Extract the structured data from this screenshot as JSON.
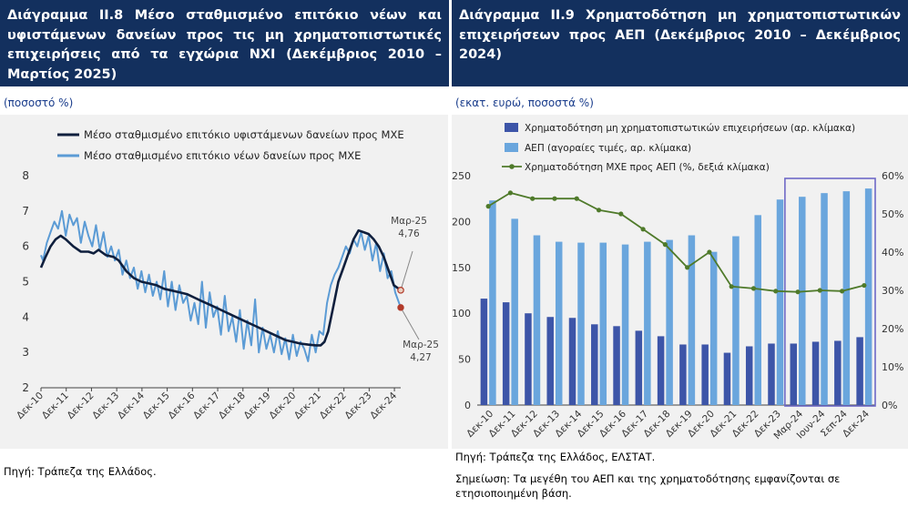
{
  "left": {
    "title": "Διάγραμμα ΙΙ.8 Μέσο σταθμισμένο επιτόκιο νέων και υφιστάμενων δανείων προς τις μη χρηματοπιστωτικές επιχειρήσεις από τα εγχώρια ΝΧΙ (Δεκέμβριος 2010 – Μαρτίος 2025)",
    "units": "(ποσοστό %)",
    "source": "Πηγή: Τράπεζα της Ελλάδος."
  },
  "right": {
    "title": "Διάγραμμα ΙΙ.9 Χρηματοδότηση μη χρηματοπιστωτικών επιχειρήσεων προς ΑΕΠ (Δεκέμβριος 2010 – Δεκέμβριος 2024)",
    "units": "(εκατ. ευρώ, ποσοστά %)",
    "source": "Πηγή: Τράπεζα της Ελλάδος, ΕΛΣΤΑΤ.",
    "note": "Σημείωση: Τα μεγέθη του ΑΕΠ και της χρηματοδότησης εμφανίζονται σε ετησιοποιημένη βάση."
  },
  "colors": {
    "title_bg": "#13305e",
    "dark_line": "#0f1f3d",
    "light_line": "#5b9bd5",
    "dark_bar": "#3d55a8",
    "light_bar": "#6aa6dd",
    "ratio_line": "#4f7a2a",
    "box": "#6f69c7"
  },
  "chart_data": [
    {
      "type": "line",
      "ylim": [
        2,
        8
      ],
      "yticks": [
        2,
        3,
        4,
        5,
        6,
        7,
        8
      ],
      "xticks": [
        "Δεκ-10",
        "Δεκ-11",
        "Δεκ-12",
        "Δεκ-13",
        "Δεκ-14",
        "Δεκ-15",
        "Δεκ-16",
        "Δεκ-17",
        "Δεκ-18",
        "Δεκ-19",
        "Δεκ-20",
        "Δεκ-21",
        "Δεκ-22",
        "Δεκ-23",
        "Δεκ-24"
      ],
      "x_range_years": [
        2010.92,
        2025.17
      ],
      "series": [
        {
          "name": "Μέσο σταθμισμένο επιτόκιο υφιστάμενων δανείων προς ΜΧΕ",
          "x": [
            2010.92,
            2011.1,
            2011.3,
            2011.5,
            2011.7,
            2011.9,
            2012.2,
            2012.5,
            2012.8,
            2013.0,
            2013.2,
            2013.5,
            2013.8,
            2014.0,
            2014.3,
            2014.6,
            2014.9,
            2015.2,
            2015.5,
            2015.8,
            2016.1,
            2016.4,
            2016.7,
            2017.0,
            2017.3,
            2017.6,
            2017.9,
            2018.2,
            2018.5,
            2018.8,
            2019.1,
            2019.4,
            2019.7,
            2020.0,
            2020.3,
            2020.6,
            2020.9,
            2021.2,
            2021.5,
            2021.8,
            2022.0,
            2022.15,
            2022.3,
            2022.5,
            2022.7,
            2022.9,
            2023.1,
            2023.3,
            2023.5,
            2023.7,
            2023.9,
            2024.1,
            2024.3,
            2024.5,
            2024.7,
            2024.9,
            2025.17
          ],
          "values": [
            5.4,
            5.7,
            6.0,
            6.2,
            6.3,
            6.2,
            6.0,
            5.85,
            5.85,
            5.8,
            5.9,
            5.75,
            5.7,
            5.6,
            5.3,
            5.1,
            5.0,
            4.95,
            4.9,
            4.8,
            4.75,
            4.7,
            4.65,
            4.55,
            4.45,
            4.35,
            4.25,
            4.15,
            4.05,
            3.95,
            3.85,
            3.75,
            3.65,
            3.55,
            3.45,
            3.35,
            3.3,
            3.25,
            3.22,
            3.2,
            3.2,
            3.3,
            3.6,
            4.3,
            5.0,
            5.4,
            5.8,
            6.2,
            6.45,
            6.4,
            6.35,
            6.2,
            6.0,
            5.7,
            5.3,
            4.9,
            4.76
          ]
        },
        {
          "name": "Μέσο σταθμισμένο επιτόκιο νέων δανείων προς ΜΧΕ",
          "x": [
            2010.92,
            2011.0,
            2011.15,
            2011.3,
            2011.45,
            2011.6,
            2011.75,
            2011.9,
            2012.05,
            2012.2,
            2012.35,
            2012.5,
            2012.65,
            2012.8,
            2012.95,
            2013.1,
            2013.25,
            2013.4,
            2013.55,
            2013.7,
            2013.85,
            2014.0,
            2014.15,
            2014.3,
            2014.45,
            2014.6,
            2014.75,
            2014.9,
            2015.05,
            2015.2,
            2015.35,
            2015.5,
            2015.65,
            2015.8,
            2015.95,
            2016.1,
            2016.25,
            2016.4,
            2016.55,
            2016.7,
            2016.85,
            2017.0,
            2017.15,
            2017.3,
            2017.45,
            2017.6,
            2017.75,
            2017.9,
            2018.05,
            2018.2,
            2018.35,
            2018.5,
            2018.65,
            2018.8,
            2018.95,
            2019.1,
            2019.25,
            2019.4,
            2019.55,
            2019.7,
            2019.85,
            2020.0,
            2020.15,
            2020.3,
            2020.45,
            2020.6,
            2020.75,
            2020.9,
            2021.05,
            2021.2,
            2021.35,
            2021.5,
            2021.65,
            2021.8,
            2021.95,
            2022.1,
            2022.25,
            2022.4,
            2022.55,
            2022.7,
            2022.85,
            2023.0,
            2023.15,
            2023.3,
            2023.45,
            2023.6,
            2023.75,
            2023.9,
            2024.05,
            2024.2,
            2024.35,
            2024.5,
            2024.65,
            2024.8,
            2024.95,
            2025.17
          ],
          "values": [
            5.75,
            5.6,
            6.1,
            6.4,
            6.7,
            6.5,
            7.0,
            6.3,
            6.9,
            6.6,
            6.8,
            6.1,
            6.7,
            6.3,
            6.0,
            6.6,
            5.9,
            6.4,
            5.7,
            6.0,
            5.6,
            5.9,
            5.2,
            5.6,
            5.1,
            5.4,
            4.8,
            5.3,
            4.7,
            5.2,
            4.6,
            5.0,
            4.5,
            5.3,
            4.3,
            5.0,
            4.2,
            4.9,
            4.4,
            4.6,
            3.9,
            4.4,
            3.8,
            5.0,
            3.7,
            4.7,
            4.0,
            4.3,
            3.5,
            4.6,
            3.6,
            4.0,
            3.3,
            4.2,
            3.1,
            3.9,
            3.2,
            4.5,
            3.0,
            3.7,
            3.1,
            3.5,
            3.0,
            3.6,
            2.95,
            3.4,
            2.8,
            3.5,
            2.9,
            3.3,
            3.1,
            2.75,
            3.5,
            3.0,
            3.6,
            3.5,
            4.4,
            4.9,
            5.2,
            5.4,
            5.7,
            6.0,
            5.8,
            6.2,
            6.0,
            6.4,
            5.9,
            6.3,
            5.6,
            6.1,
            5.3,
            5.8,
            5.1,
            5.3,
            4.7,
            4.27
          ]
        }
      ],
      "annotations": [
        {
          "label": "Μαρ-25",
          "value_label": "4,76",
          "x": 2025.17,
          "y": 4.76
        },
        {
          "label": "Μαρ-25",
          "value_label": "4,27",
          "x": 2025.17,
          "y": 4.27
        }
      ]
    },
    {
      "type": "bar",
      "categories": [
        "Δεκ-10",
        "Δεκ-11",
        "Δεκ-12",
        "Δεκ-13",
        "Δεκ-14",
        "Δεκ-15",
        "Δεκ-16",
        "Δεκ-17",
        "Δεκ-18",
        "Δεκ-19",
        "Δεκ-20",
        "Δεκ-21",
        "Δεκ-22",
        "Δεκ-23",
        "Μαρ-24",
        "Ιουν-24",
        "Σεπ-24",
        "Δεκ-24"
      ],
      "ylim": [
        0,
        250
      ],
      "yticks": [
        0,
        50,
        100,
        150,
        200,
        250
      ],
      "y2lim": [
        0,
        60
      ],
      "y2ticks": [
        "0%",
        "10%",
        "20%",
        "30%",
        "40%",
        "50%",
        "60%"
      ],
      "series": [
        {
          "name": "Χρηματοδότηση μη χρηματοπιστωτικών επιχειρήσεων  (αρ. κλίμακα)",
          "axis": "left",
          "kind": "bar",
          "values": [
            116,
            112,
            100,
            96,
            95,
            88,
            86,
            81,
            75,
            66,
            66,
            57,
            64,
            67,
            67,
            69,
            70,
            74
          ]
        },
        {
          "name": "ΑΕΠ (αγοραίες τιμές, αρ. κλίμακα)",
          "axis": "left",
          "kind": "bar",
          "values": [
            223,
            203,
            185,
            178,
            177,
            177,
            175,
            178,
            180,
            185,
            167,
            184,
            207,
            224,
            227,
            231,
            233,
            236
          ]
        },
        {
          "name": "Χρηματοδότηση ΜΧΕ προς ΑΕΠ (%, δεξιά κλίμακα)",
          "axis": "right",
          "kind": "line",
          "values": [
            52,
            55.5,
            54,
            54,
            54,
            51,
            50,
            46,
            42,
            36,
            40,
            31,
            30.5,
            29.8,
            29.6,
            30,
            29.8,
            31.3
          ]
        }
      ],
      "highlight_box": {
        "from": "Μαρ-24",
        "to": "Δεκ-24"
      }
    }
  ]
}
